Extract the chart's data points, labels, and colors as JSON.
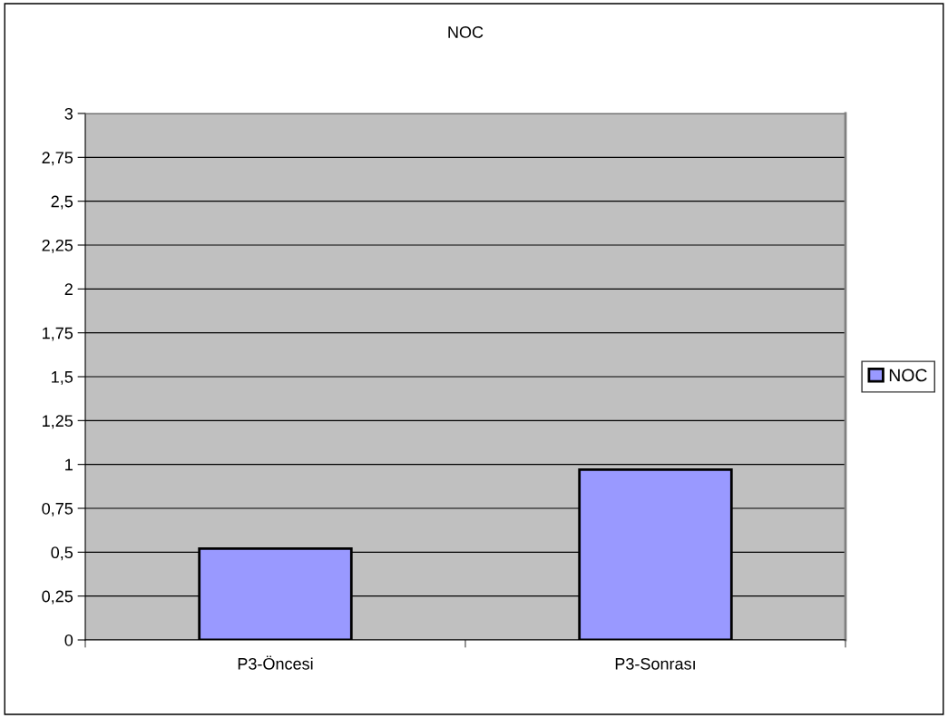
{
  "chart_data": {
    "type": "bar",
    "title": "NOC",
    "categories": [
      "P3-Öncesi",
      "P3-Sonrası"
    ],
    "series": [
      {
        "name": "NOC",
        "color": "#9999ff",
        "values": [
          0.52,
          0.97
        ]
      }
    ],
    "ylim": [
      0,
      3
    ],
    "yticks": [
      0,
      {
        "value": 0.25,
        "label": "0,25"
      },
      {
        "value": 0.5,
        "label": "0,5"
      },
      {
        "value": 0.75,
        "label": "0,75"
      },
      1,
      {
        "value": 1.25,
        "label": "1,25"
      },
      {
        "value": 1.5,
        "label": "1,5"
      },
      {
        "value": 1.75,
        "label": "1,75"
      },
      2,
      {
        "value": 2.25,
        "label": "2,25"
      },
      {
        "value": 2.5,
        "label": "2,5"
      },
      {
        "value": 2.75,
        "label": "2,75"
      },
      3
    ],
    "grid": "y",
    "legend": "right"
  }
}
